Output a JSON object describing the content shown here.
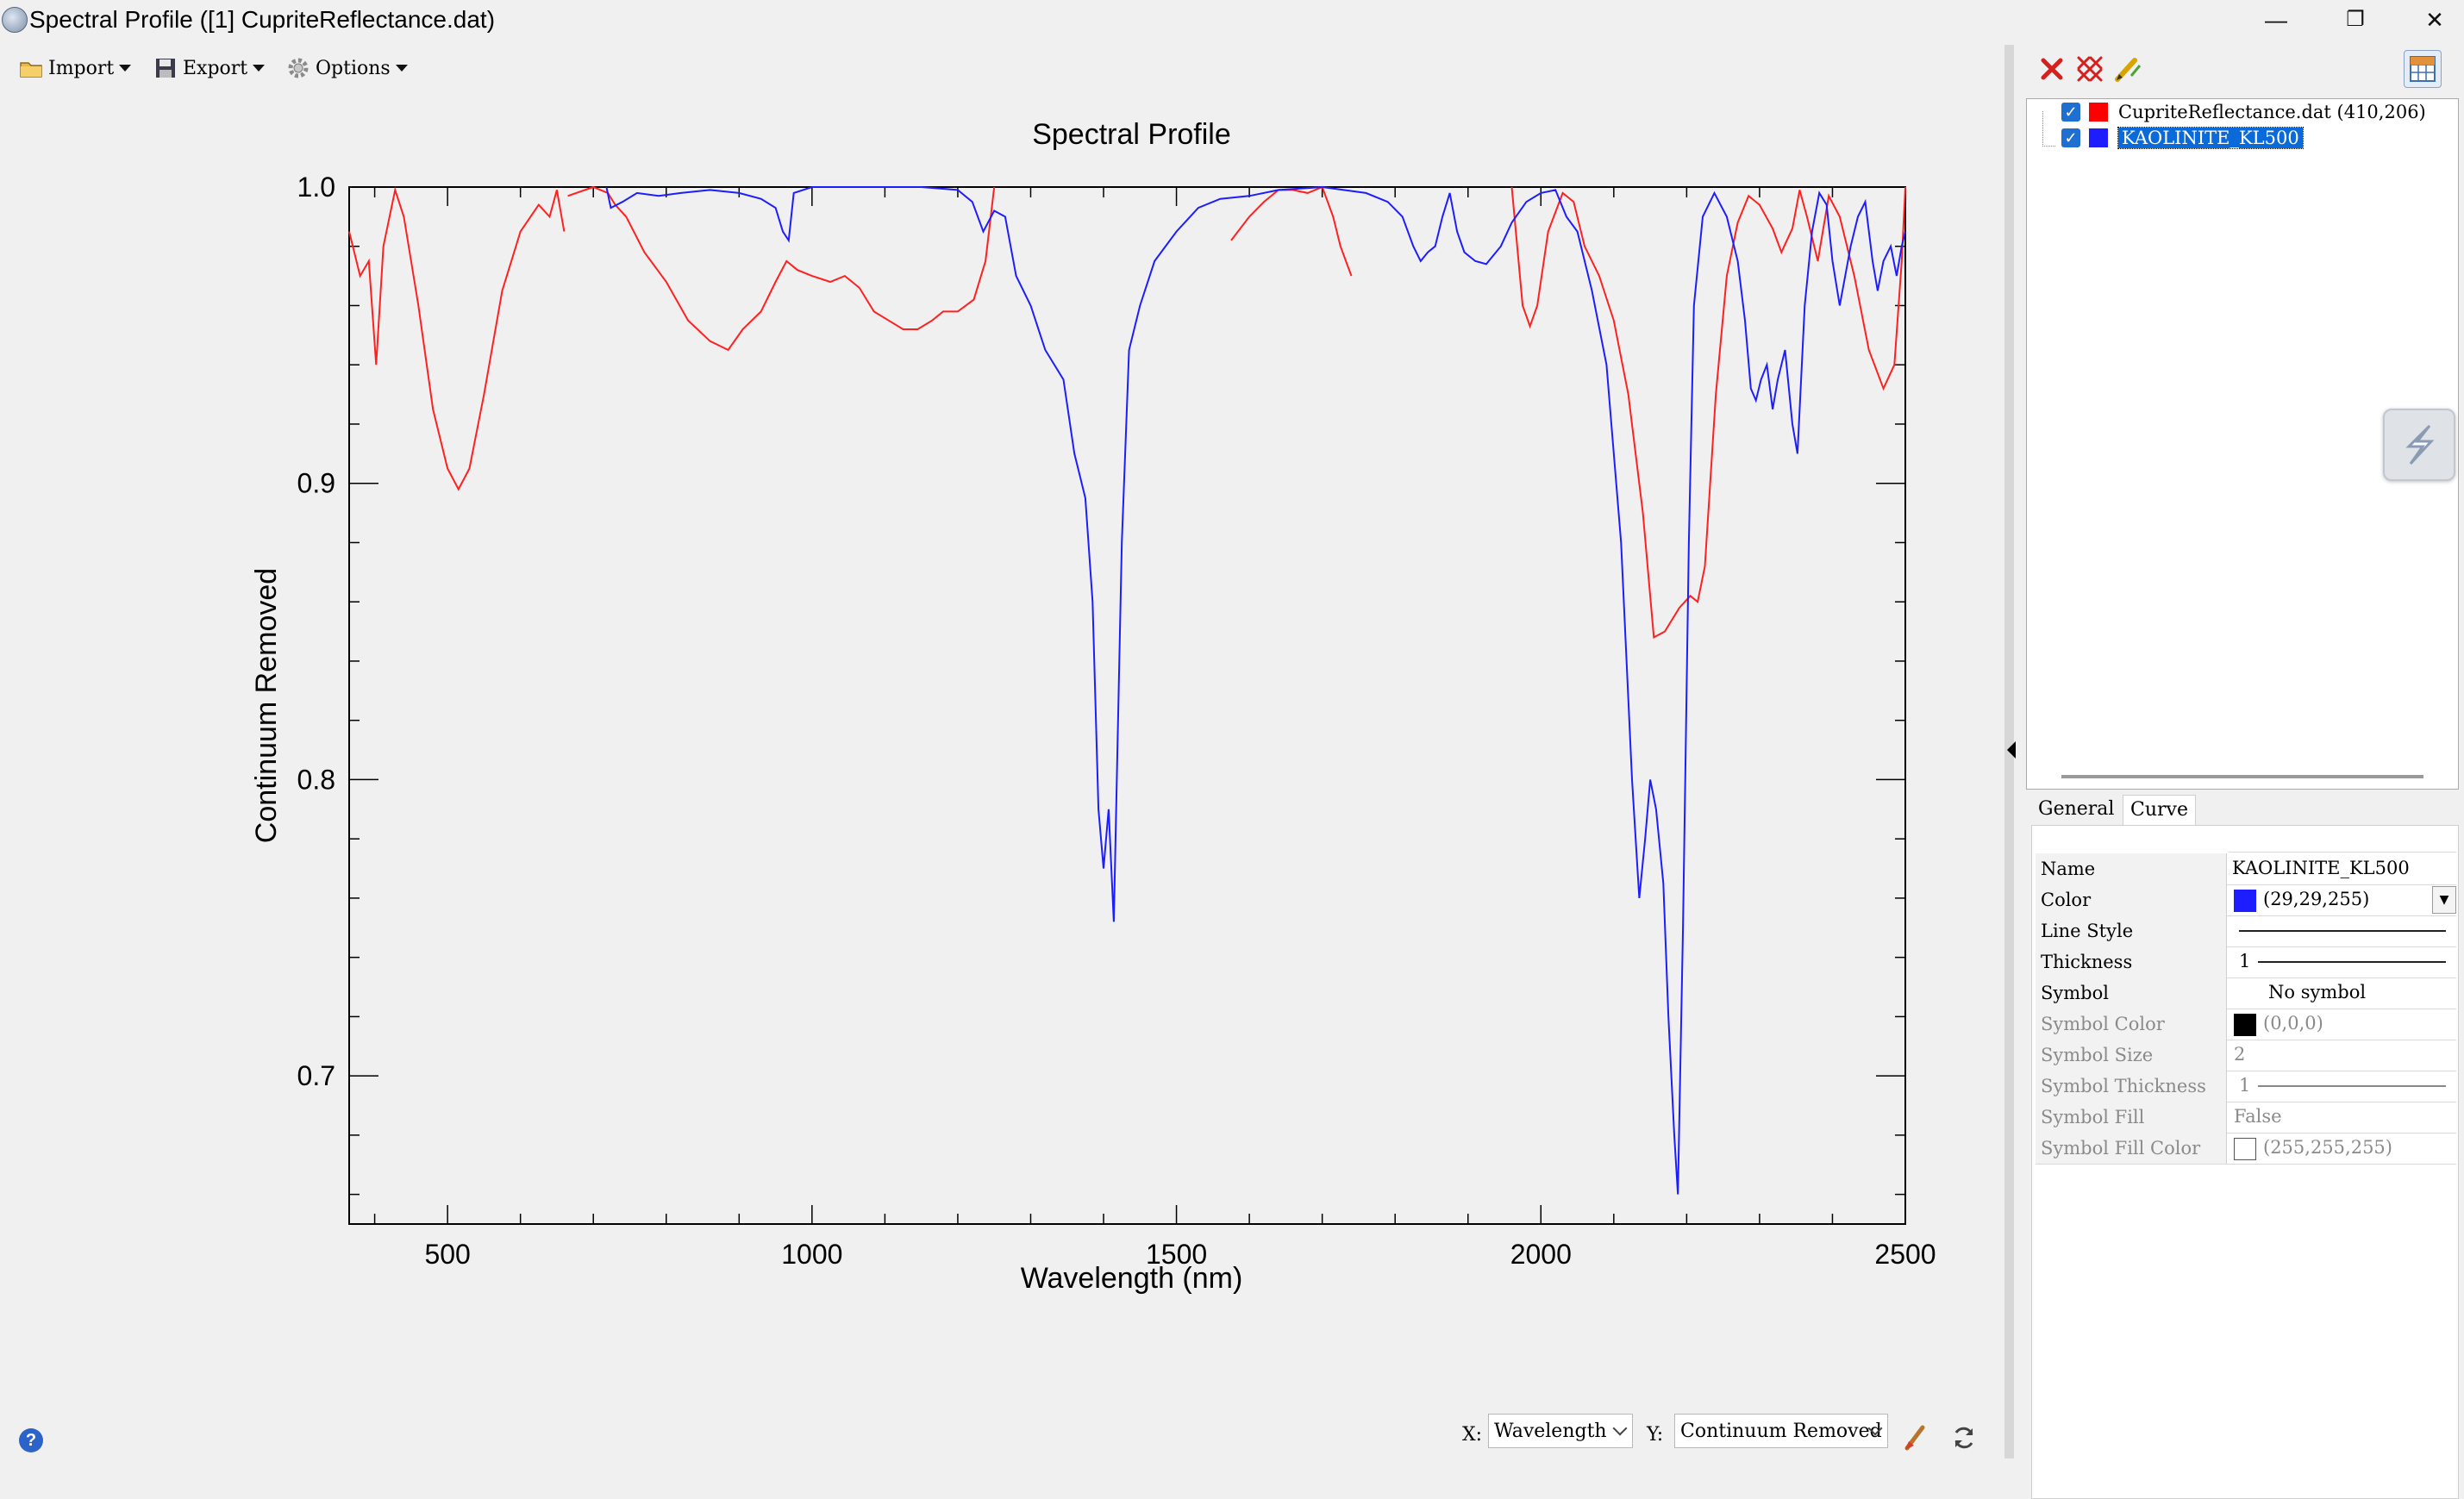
{
  "window": {
    "title": "Spectral Profile ([1] CupriteReflectance.dat)",
    "minimize": "—",
    "restore": "❐",
    "close": "✕"
  },
  "toolbar": {
    "import_label": "Import",
    "export_label": "Export",
    "options_label": "Options"
  },
  "chart_data": {
    "type": "line",
    "title": "Spectral Profile",
    "xlabel": "Wavelength (nm)",
    "ylabel": "Continuum Removed",
    "xlim": [
      365,
      2500
    ],
    "ylim": [
      0.65,
      1.0
    ],
    "xticks": [
      500,
      1000,
      1500,
      2000,
      2500
    ],
    "yticks": [
      0.7,
      0.8,
      0.9,
      1.0
    ],
    "xtick_labels": [
      "500",
      "1000",
      "1500",
      "2000",
      "2500"
    ],
    "ytick_labels": [
      "0.7",
      "0.8",
      "0.9",
      "1.0"
    ],
    "grid": false,
    "series": [
      {
        "name": "CupriteReflectance.dat (410,206)",
        "color": "#ff2020",
        "segments": [
          [
            [
              365,
              0.985
            ],
            [
              380,
              0.97
            ],
            [
              392,
              0.975
            ],
            [
              402,
              0.94
            ],
            [
              412,
              0.98
            ],
            [
              428,
              0.999
            ],
            [
              440,
              0.99
            ],
            [
              460,
              0.96
            ],
            [
              480,
              0.925
            ],
            [
              500,
              0.905
            ],
            [
              515,
              0.898
            ],
            [
              530,
              0.905
            ],
            [
              550,
              0.93
            ],
            [
              575,
              0.965
            ],
            [
              600,
              0.985
            ],
            [
              625,
              0.994
            ],
            [
              640,
              0.99
            ],
            [
              650,
              0.999
            ],
            [
              660,
              0.985
            ]
          ],
          [
            [
              665,
              0.997
            ],
            [
              700,
              1.0
            ],
            [
              720,
              0.998
            ],
            [
              730,
              0.994
            ],
            [
              745,
              0.99
            ],
            [
              770,
              0.978
            ],
            [
              800,
              0.968
            ],
            [
              830,
              0.955
            ],
            [
              860,
              0.948
            ],
            [
              885,
              0.945
            ],
            [
              905,
              0.952
            ],
            [
              930,
              0.958
            ],
            [
              950,
              0.968
            ],
            [
              965,
              0.975
            ],
            [
              980,
              0.972
            ],
            [
              1000,
              0.97
            ],
            [
              1025,
              0.968
            ],
            [
              1045,
              0.97
            ],
            [
              1065,
              0.966
            ],
            [
              1085,
              0.958
            ],
            [
              1105,
              0.955
            ],
            [
              1125,
              0.952
            ],
            [
              1145,
              0.952
            ],
            [
              1165,
              0.955
            ],
            [
              1180,
              0.958
            ],
            [
              1200,
              0.958
            ],
            [
              1222,
              0.962
            ],
            [
              1238,
              0.975
            ],
            [
              1250,
              1.0
            ]
          ],
          [
            [
              1575,
              0.982
            ],
            [
              1600,
              0.99
            ],
            [
              1620,
              0.995
            ],
            [
              1640,
              0.999
            ],
            [
              1660,
              0.999
            ],
            [
              1680,
              0.998
            ],
            [
              1700,
              1.0
            ],
            [
              1715,
              0.99
            ],
            [
              1725,
              0.98
            ],
            [
              1740,
              0.97
            ]
          ],
          [
            [
              1960,
              1.0
            ],
            [
              1975,
              0.96
            ],
            [
              1985,
              0.953
            ],
            [
              1995,
              0.96
            ],
            [
              2010,
              0.985
            ],
            [
              2030,
              0.998
            ],
            [
              2045,
              0.995
            ],
            [
              2060,
              0.98
            ],
            [
              2080,
              0.97
            ],
            [
              2100,
              0.955
            ],
            [
              2120,
              0.93
            ],
            [
              2140,
              0.89
            ],
            [
              2155,
              0.848
            ],
            [
              2170,
              0.85
            ],
            [
              2190,
              0.858
            ],
            [
              2205,
              0.862
            ],
            [
              2215,
              0.86
            ],
            [
              2225,
              0.872
            ],
            [
              2240,
              0.93
            ],
            [
              2255,
              0.97
            ],
            [
              2270,
              0.988
            ],
            [
              2285,
              0.997
            ],
            [
              2300,
              0.994
            ],
            [
              2318,
              0.986
            ],
            [
              2330,
              0.978
            ],
            [
              2345,
              0.986
            ],
            [
              2355,
              0.999
            ],
            [
              2365,
              0.99
            ],
            [
              2380,
              0.975
            ],
            [
              2395,
              0.997
            ],
            [
              2410,
              0.99
            ],
            [
              2430,
              0.97
            ],
            [
              2450,
              0.945
            ],
            [
              2470,
              0.932
            ],
            [
              2485,
              0.94
            ],
            [
              2495,
              0.975
            ],
            [
              2500,
              1.0
            ]
          ]
        ]
      },
      {
        "name": "KAOLINITE_KL500",
        "color": "#1d1dff",
        "segments": [
          [
            [
              718,
              1.0
            ],
            [
              724,
              0.993
            ],
            [
              740,
              0.995
            ],
            [
              760,
              0.998
            ],
            [
              790,
              0.997
            ],
            [
              820,
              0.998
            ],
            [
              860,
              0.999
            ],
            [
              900,
              0.998
            ],
            [
              930,
              0.996
            ],
            [
              950,
              0.993
            ],
            [
              960,
              0.985
            ],
            [
              968,
              0.982
            ],
            [
              975,
              0.998
            ],
            [
              1000,
              1.0
            ],
            [
              1050,
              1.0
            ],
            [
              1100,
              1.0
            ],
            [
              1150,
              1.0
            ],
            [
              1200,
              0.999
            ],
            [
              1220,
              0.995
            ],
            [
              1235,
              0.985
            ],
            [
              1250,
              0.992
            ],
            [
              1265,
              0.99
            ],
            [
              1280,
              0.97
            ],
            [
              1300,
              0.96
            ],
            [
              1320,
              0.945
            ],
            [
              1345,
              0.935
            ],
            [
              1360,
              0.91
            ],
            [
              1368,
              0.902
            ],
            [
              1375,
              0.895
            ],
            [
              1385,
              0.86
            ],
            [
              1393,
              0.79
            ],
            [
              1400,
              0.77
            ],
            [
              1407,
              0.79
            ],
            [
              1414,
              0.752
            ],
            [
              1425,
              0.88
            ],
            [
              1435,
              0.945
            ],
            [
              1450,
              0.96
            ],
            [
              1470,
              0.975
            ],
            [
              1500,
              0.985
            ],
            [
              1530,
              0.993
            ],
            [
              1560,
              0.996
            ],
            [
              1600,
              0.997
            ],
            [
              1640,
              0.999
            ],
            [
              1700,
              1.0
            ],
            [
              1760,
              0.998
            ],
            [
              1790,
              0.995
            ],
            [
              1810,
              0.99
            ],
            [
              1825,
              0.98
            ],
            [
              1835,
              0.975
            ],
            [
              1845,
              0.978
            ],
            [
              1855,
              0.98
            ],
            [
              1865,
              0.99
            ],
            [
              1875,
              0.998
            ],
            [
              1885,
              0.985
            ],
            [
              1895,
              0.978
            ],
            [
              1910,
              0.975
            ],
            [
              1925,
              0.974
            ],
            [
              1945,
              0.98
            ],
            [
              1960,
              0.988
            ],
            [
              1980,
              0.995
            ],
            [
              2000,
              0.998
            ],
            [
              2020,
              0.999
            ],
            [
              2035,
              0.99
            ],
            [
              2050,
              0.985
            ],
            [
              2070,
              0.965
            ],
            [
              2090,
              0.94
            ],
            [
              2110,
              0.88
            ],
            [
              2125,
              0.8
            ],
            [
              2135,
              0.76
            ],
            [
              2143,
              0.78
            ],
            [
              2150,
              0.8
            ],
            [
              2158,
              0.79
            ],
            [
              2168,
              0.765
            ],
            [
              2175,
              0.72
            ],
            [
              2183,
              0.68
            ],
            [
              2188,
              0.66
            ],
            [
              2195,
              0.75
            ],
            [
              2203,
              0.88
            ],
            [
              2210,
              0.96
            ],
            [
              2222,
              0.99
            ],
            [
              2238,
              0.998
            ],
            [
              2255,
              0.99
            ],
            [
              2270,
              0.975
            ],
            [
              2280,
              0.955
            ],
            [
              2288,
              0.932
            ],
            [
              2295,
              0.928
            ],
            [
              2302,
              0.935
            ],
            [
              2310,
              0.94
            ],
            [
              2318,
              0.925
            ],
            [
              2325,
              0.935
            ],
            [
              2335,
              0.945
            ],
            [
              2345,
              0.92
            ],
            [
              2352,
              0.91
            ],
            [
              2362,
              0.96
            ],
            [
              2372,
              0.985
            ],
            [
              2382,
              0.998
            ],
            [
              2392,
              0.994
            ],
            [
              2400,
              0.975
            ],
            [
              2410,
              0.96
            ],
            [
              2425,
              0.98
            ],
            [
              2435,
              0.99
            ],
            [
              2445,
              0.995
            ],
            [
              2455,
              0.975
            ],
            [
              2462,
              0.965
            ],
            [
              2470,
              0.975
            ],
            [
              2480,
              0.98
            ],
            [
              2488,
              0.97
            ],
            [
              2495,
              0.98
            ],
            [
              2500,
              0.985
            ]
          ]
        ]
      }
    ]
  },
  "legend_panel": {
    "entries": [
      {
        "label": "CupriteReflectance.dat (410,206)",
        "color": "#ff0000",
        "checked": true,
        "check_glyph": "✓"
      },
      {
        "label": "KAOLINITE_KL500",
        "color": "#1d1dff",
        "checked": true,
        "check_glyph": "✓",
        "selected": true
      }
    ]
  },
  "tabs": {
    "general": "General",
    "curve": "Curve"
  },
  "properties": {
    "name_label": "Name",
    "name_value": "KAOLINITE_KL500",
    "color_label": "Color",
    "color_value": "(29,29,255)",
    "color_swatch": "#1d1dff",
    "line_style_label": "Line Style",
    "thickness_label": "Thickness",
    "thickness_value": "1",
    "symbol_label": "Symbol",
    "symbol_value": "No symbol",
    "symbol_color_label": "Symbol Color",
    "symbol_color_value": "(0,0,0)",
    "symbol_color_swatch": "#000000",
    "symbol_size_label": "Symbol Size",
    "symbol_size_value": "2",
    "symbol_thickness_label": "Symbol Thickness",
    "symbol_thickness_value": "1",
    "symbol_fill_label": "Symbol Fill",
    "symbol_fill_value": "False",
    "symbol_fill_color_label": "Symbol Fill Color",
    "symbol_fill_color_value": "(255,255,255)",
    "symbol_fill_color_swatch": "#ffffff"
  },
  "bottom_bar": {
    "x_label": "X:",
    "x_value": "Wavelength",
    "y_label": "Y:",
    "y_value": "Continuum Removed",
    "help_glyph": "?"
  }
}
